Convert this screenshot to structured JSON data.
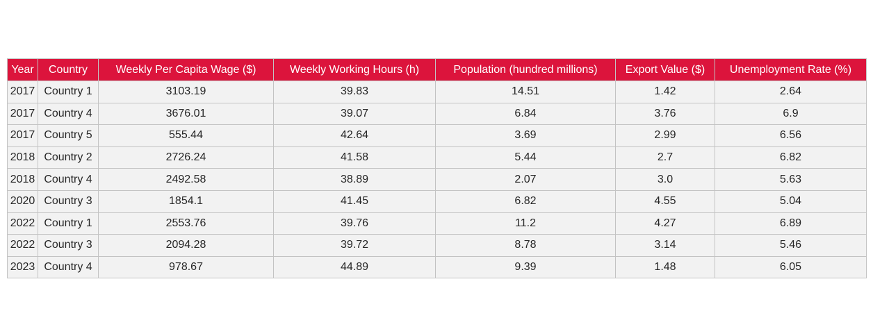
{
  "colors": {
    "header_bg": "#dc143c",
    "header_text": "#ffffff",
    "cell_bg": "#f2f2f2",
    "cell_text": "#262626",
    "border": "#c3c3c3"
  },
  "chart_data": {
    "type": "table",
    "columns": [
      "Year",
      "Country",
      "Weekly Per Capita Wage ($)",
      "Weekly Working Hours (h)",
      "Population (hundred millions)",
      "Export Value ($)",
      "Unemployment Rate (%)"
    ],
    "rows": [
      [
        "2017",
        "Country 1",
        "3103.19",
        "39.83",
        "14.51",
        "1.42",
        "2.64"
      ],
      [
        "2017",
        "Country 4",
        "3676.01",
        "39.07",
        "6.84",
        "3.76",
        "6.9"
      ],
      [
        "2017",
        "Country 5",
        "555.44",
        "42.64",
        "3.69",
        "2.99",
        "6.56"
      ],
      [
        "2018",
        "Country 2",
        "2726.24",
        "41.58",
        "5.44",
        "2.7",
        "6.82"
      ],
      [
        "2018",
        "Country 4",
        "2492.58",
        "38.89",
        "2.07",
        "3.0",
        "5.63"
      ],
      [
        "2020",
        "Country 3",
        "1854.1",
        "41.45",
        "6.82",
        "4.55",
        "5.04"
      ],
      [
        "2022",
        "Country 1",
        "2553.76",
        "39.76",
        "11.2",
        "4.27",
        "6.89"
      ],
      [
        "2022",
        "Country 3",
        "2094.28",
        "39.72",
        "8.78",
        "3.14",
        "5.46"
      ],
      [
        "2023",
        "Country 4",
        "978.67",
        "44.89",
        "9.39",
        "1.48",
        "6.05"
      ]
    ]
  }
}
